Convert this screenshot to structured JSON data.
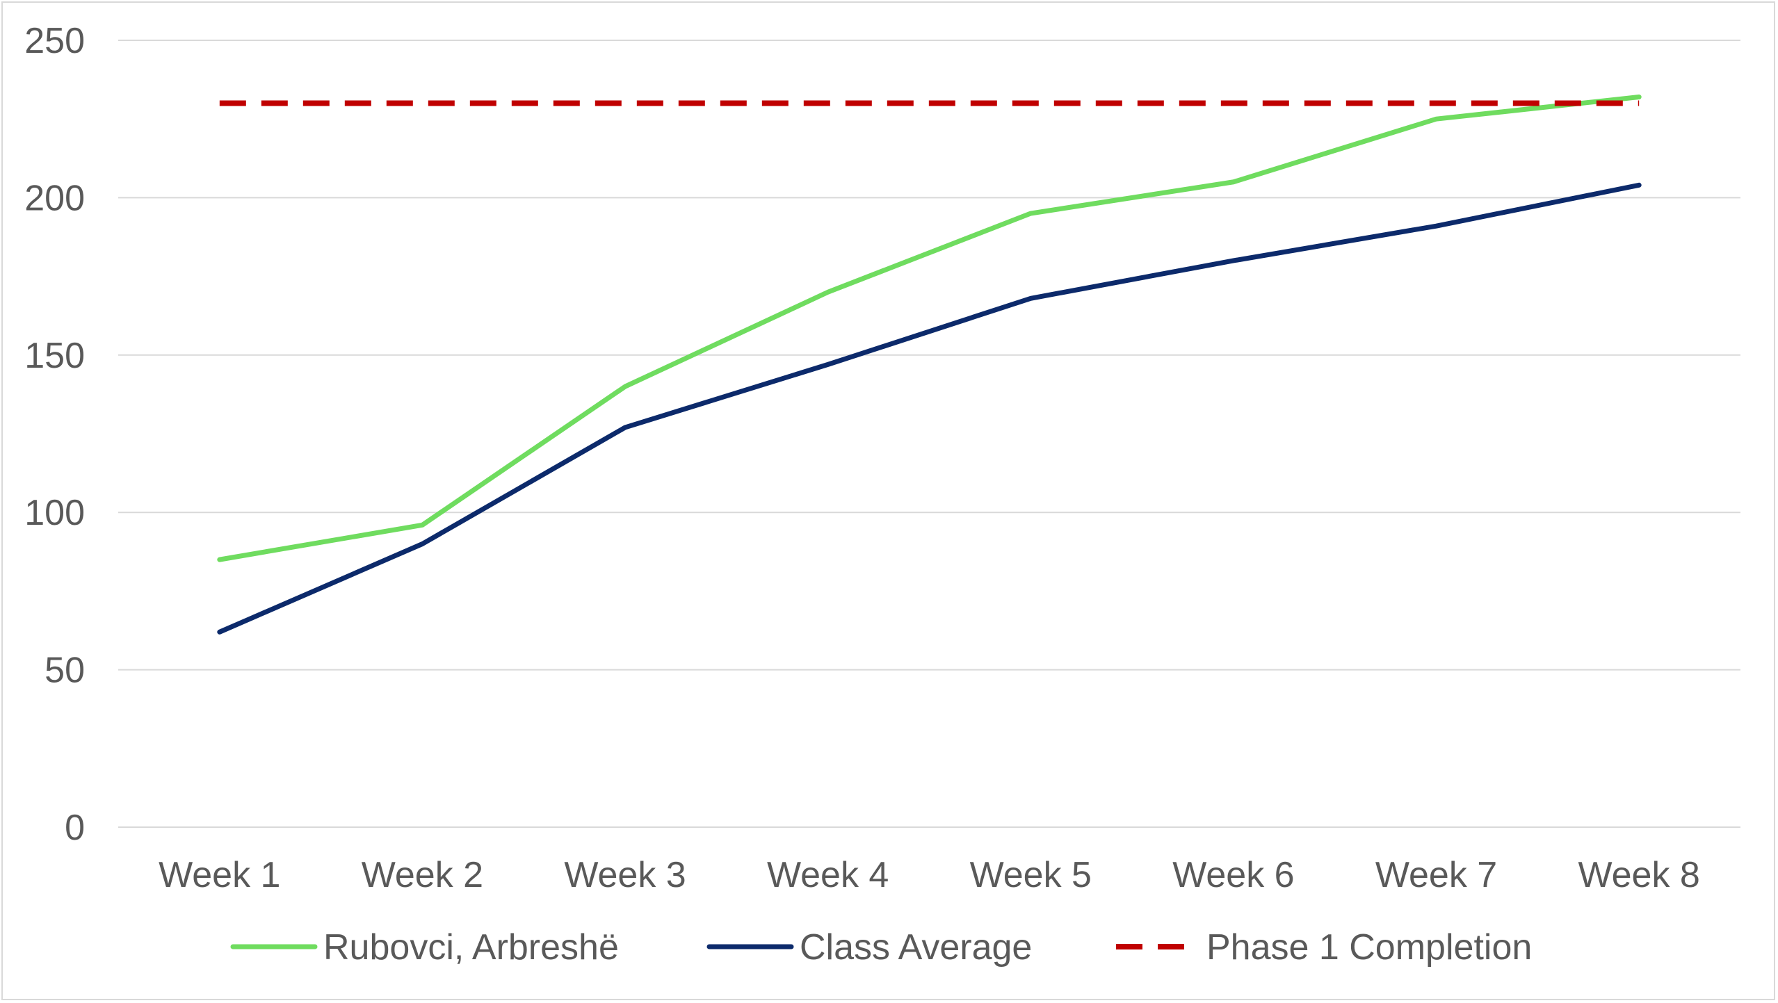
{
  "chart_data": {
    "type": "line",
    "title": "",
    "xlabel": "",
    "ylabel": "",
    "categories": [
      "Week 1",
      "Week 2",
      "Week 3",
      "Week 4",
      "Week 5",
      "Week 6",
      "Week 7",
      "Week 8"
    ],
    "ylim": [
      0,
      250
    ],
    "yticks": [
      0,
      50,
      100,
      150,
      200,
      250
    ],
    "ytick_labels": [
      "0",
      "50",
      "100",
      "150",
      "200",
      "250"
    ],
    "grid": "horizontal",
    "legend_position": "bottom",
    "series": [
      {
        "name": "Rubovci, Arbreshë",
        "color": "#6fdc5f",
        "dashed": false,
        "values": [
          85,
          96,
          140,
          170,
          195,
          205,
          225,
          232
        ]
      },
      {
        "name": "Class Average",
        "color": "#0c2a6b",
        "dashed": false,
        "values": [
          62,
          90,
          127,
          147,
          168,
          180,
          191,
          204
        ]
      },
      {
        "name": "Phase 1 Completion",
        "color": "#c00000",
        "dashed": true,
        "values": [
          230,
          230,
          230,
          230,
          230,
          230,
          230,
          230
        ]
      }
    ]
  }
}
